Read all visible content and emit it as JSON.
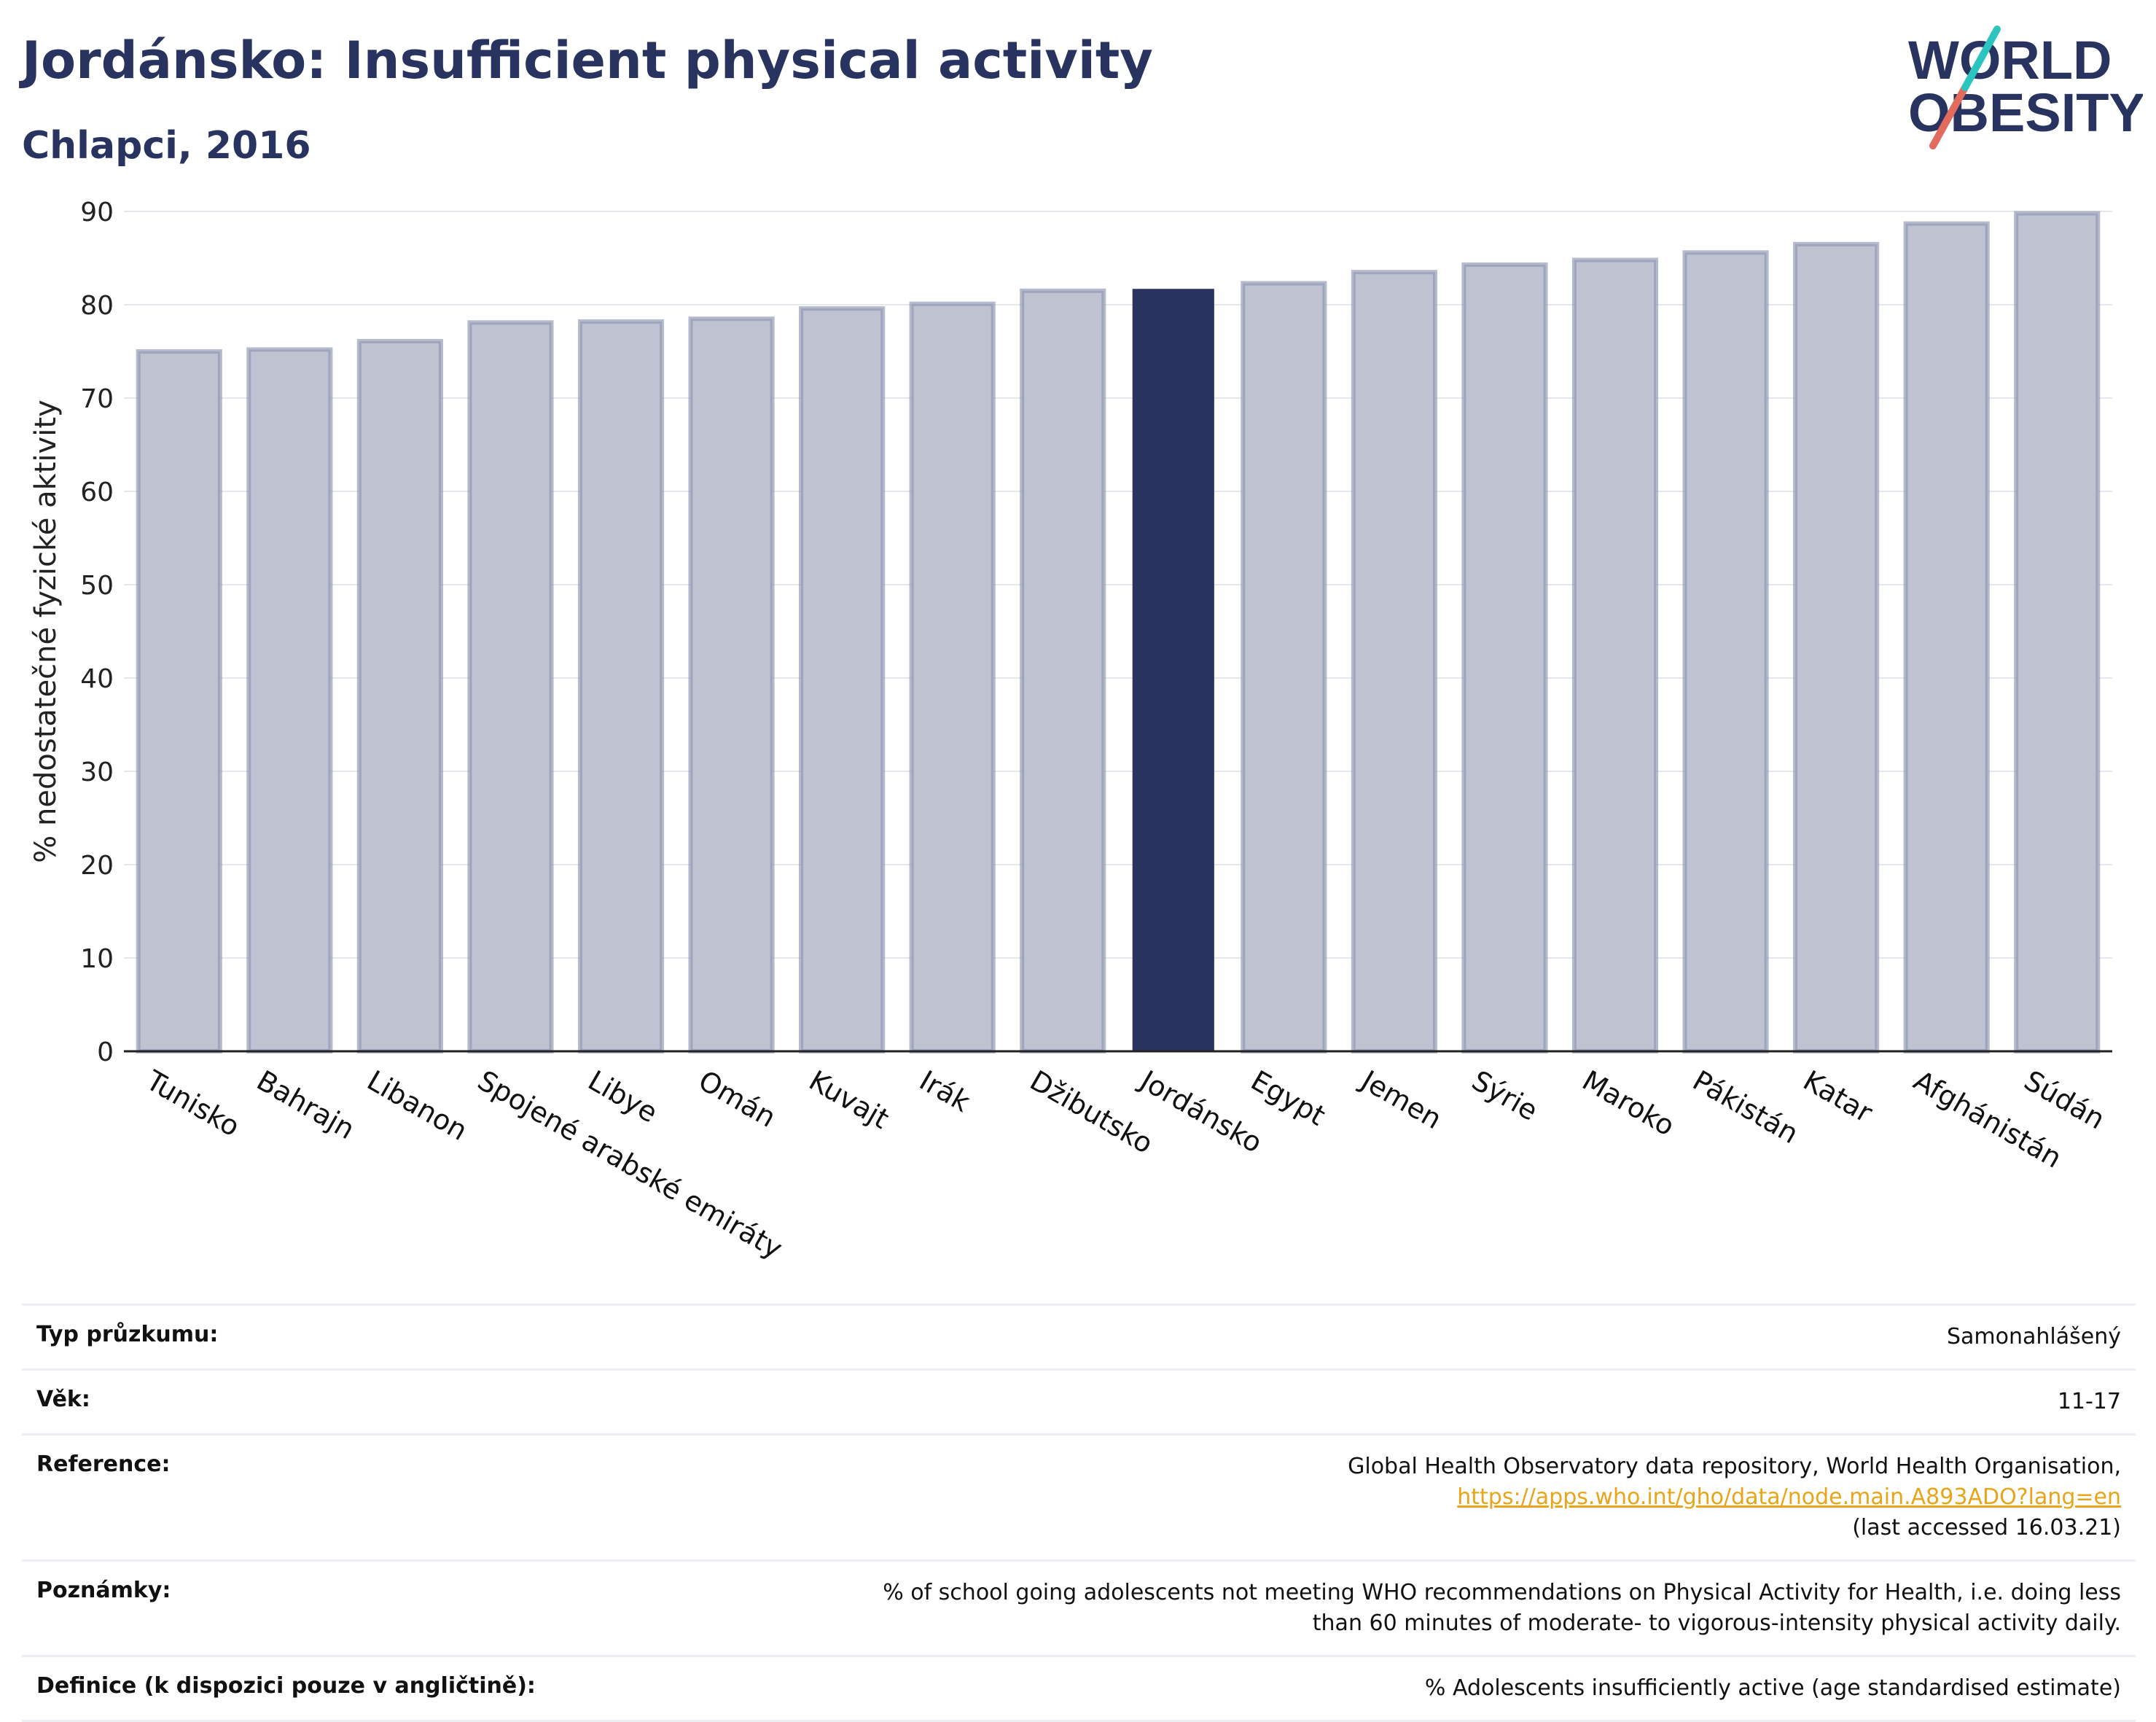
{
  "header": {
    "title": "Jordánsko: Insufficient physical activity",
    "subtitle": "Chlapci, 2016"
  },
  "logo": {
    "line1": "WORLD",
    "line2": "OBESITY"
  },
  "colors": {
    "highlight": "#283360",
    "bar": "#bfc2d1",
    "bar_outline": "#8e95b0",
    "accent_teal": "#2cc4be",
    "accent_coral": "#e36b5d",
    "link": "#e8a519"
  },
  "chart_data": {
    "type": "bar",
    "title": "Jordánsko: Insufficient physical activity",
    "subtitle": "Chlapci, 2016",
    "ylabel": "% nedostatečné fyzické aktivity",
    "xlabel": "",
    "ylim": [
      0,
      90
    ],
    "yticks": [
      0,
      10,
      20,
      30,
      40,
      50,
      60,
      70,
      80,
      90
    ],
    "grid": true,
    "highlight": "Jordánsko",
    "categories": [
      "Tunisko",
      "Bahrajn",
      "Libanon",
      "Spojené arabské emiráty",
      "Libye",
      "Omán",
      "Kuvajt",
      "Irák",
      "Džibutsko",
      "Jordánsko",
      "Egypt",
      "Jemen",
      "Sýrie",
      "Maroko",
      "Pákistán",
      "Katar",
      "Afghánistán",
      "Súdán"
    ],
    "values": [
      75.0,
      75.2,
      76.1,
      78.1,
      78.2,
      78.5,
      79.6,
      80.1,
      81.5,
      81.7,
      82.3,
      83.5,
      84.3,
      84.8,
      85.6,
      86.5,
      88.7,
      89.8
    ]
  },
  "info_table": [
    {
      "label": "Typ průzkumu:",
      "value": "Samonahlášený"
    },
    {
      "label": "Věk:",
      "value": "11-17"
    },
    {
      "label": "Reference:",
      "value": "Global Health Observatory data repository, World Health Organisation, ",
      "link": "https://apps.who.int/gho/data/node.main.A893ADO?lang=en",
      "value_after": "(last accessed 16.03.21)"
    },
    {
      "label": "Poznámky:",
      "value": "% of school going adolescents not meeting WHO recommendations on Physical Activity for Health, i.e. doing less than 60 minutes of moderate- to vigorous-intensity physical activity daily."
    },
    {
      "label": "Definice (k dispozici pouze v angličtině):",
      "value": "% Adolescents insufficiently active (age standardised estimate)"
    }
  ]
}
